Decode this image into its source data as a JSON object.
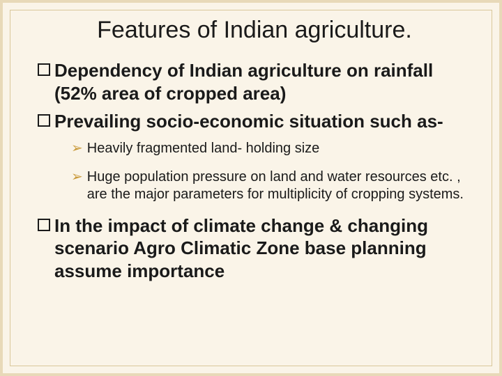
{
  "colors": {
    "background": "#faf4e8",
    "outer_border": "#e8d9b8",
    "inner_border": "#d9c79a",
    "text": "#1a1a1a",
    "arrow": "#c99a3a"
  },
  "typography": {
    "title_fontsize": 34,
    "main_bullet_fontsize": 26,
    "sub_bullet_fontsize": 20,
    "font_family": "Arial"
  },
  "title": "Features of Indian agriculture.",
  "bullets": [
    {
      "lead": "Dependency",
      "rest": " of Indian agriculture on rainfall (52% area of cropped area)"
    },
    {
      "lead": "Prevailing",
      "rest": " socio-economic situation such as-"
    }
  ],
  "sub_bullets": [
    "Heavily fragmented land- holding size",
    "Huge population pressure on land and water resources etc. ,  are the major parameters for multiplicity of cropping systems."
  ],
  "bullet_last": {
    "lead": "In",
    "rest": " the impact of climate change & changing scenario Agro Climatic Zone base planning assume importance"
  }
}
